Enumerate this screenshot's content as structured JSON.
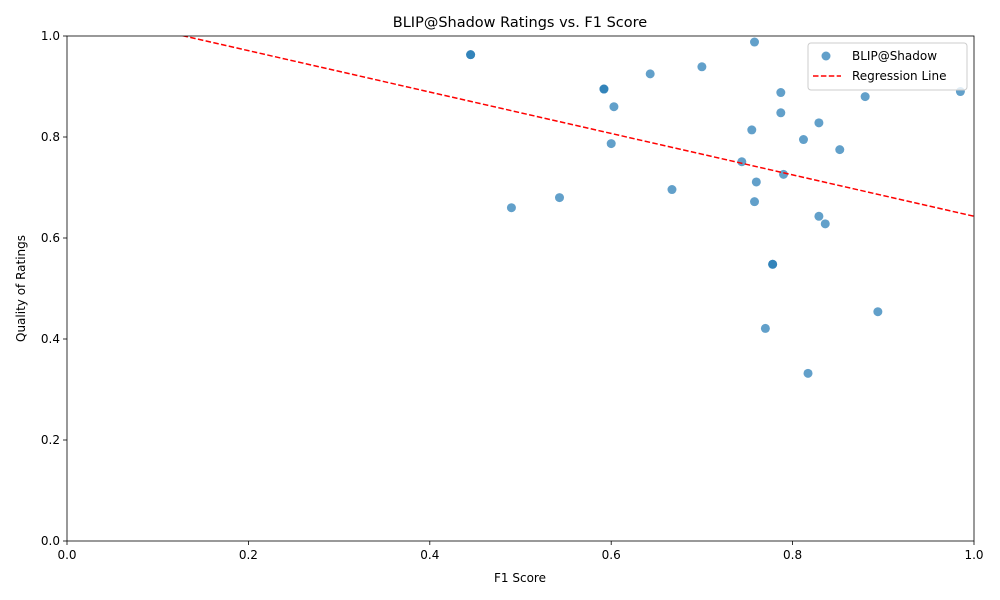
{
  "chart_data": {
    "type": "scatter",
    "title": "BLIP@Shadow Ratings vs. F1 Score",
    "xlabel": "F1 Score",
    "ylabel": "Quality of Ratings",
    "xlim": [
      0,
      1
    ],
    "ylim": [
      0,
      1
    ],
    "x_ticks": [
      "0.0",
      "0.2",
      "0.4",
      "0.6",
      "0.8",
      "1.0"
    ],
    "y_ticks": [
      "0.0",
      "0.2",
      "0.4",
      "0.6",
      "0.8",
      "1.0"
    ],
    "grid": false,
    "legend_position": "top-right",
    "series": [
      {
        "name": "BLIP@Shadow",
        "kind": "scatter",
        "color": "#1f77b4",
        "points": [
          [
            0.445,
            0.963
          ],
          [
            0.445,
            0.963
          ],
          [
            0.758,
            0.988
          ],
          [
            0.7,
            0.939
          ],
          [
            0.643,
            0.925
          ],
          [
            0.592,
            0.895
          ],
          [
            0.592,
            0.895
          ],
          [
            0.603,
            0.86
          ],
          [
            0.787,
            0.888
          ],
          [
            0.88,
            0.88
          ],
          [
            0.985,
            0.89
          ],
          [
            0.787,
            0.848
          ],
          [
            0.829,
            0.828
          ],
          [
            0.755,
            0.814
          ],
          [
            0.812,
            0.795
          ],
          [
            0.6,
            0.787
          ],
          [
            0.852,
            0.775
          ],
          [
            0.744,
            0.751
          ],
          [
            0.79,
            0.726
          ],
          [
            0.76,
            0.711
          ],
          [
            0.667,
            0.696
          ],
          [
            0.543,
            0.68
          ],
          [
            0.758,
            0.672
          ],
          [
            0.49,
            0.66
          ],
          [
            0.829,
            0.643
          ],
          [
            0.836,
            0.628
          ],
          [
            0.778,
            0.548
          ],
          [
            0.778,
            0.548
          ],
          [
            0.894,
            0.454
          ],
          [
            0.77,
            0.421
          ],
          [
            0.817,
            0.332
          ]
        ]
      },
      {
        "name": "Regression Line",
        "kind": "line",
        "color": "#ff0000",
        "line_style": "dashed",
        "x": [
          0.0,
          1.0
        ],
        "y": [
          1.053,
          0.643
        ]
      }
    ]
  }
}
